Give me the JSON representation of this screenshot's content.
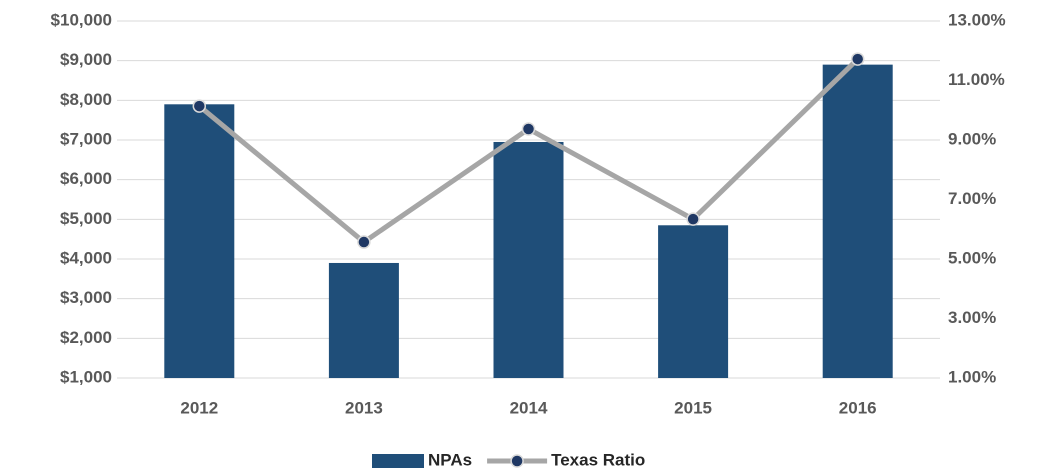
{
  "chart_data": {
    "type": "bar",
    "categories": [
      "2012",
      "2013",
      "2014",
      "2015",
      "2016"
    ],
    "series": [
      {
        "name": "NPAs",
        "type": "bar",
        "color": "#1f4e79",
        "values": [
          7900,
          3900,
          6950,
          4850,
          8900
        ]
      },
      {
        "name": "Texas Ratio",
        "type": "line",
        "axis": "y2",
        "color": "#a6a6a6",
        "marker_color": "#1f3864",
        "values": [
          10.14,
          5.57,
          9.37,
          6.34,
          11.72
        ]
      }
    ],
    "ylim": [
      1000,
      10000
    ],
    "yticks": [
      {
        "value": 1000,
        "label": "$1,000"
      },
      {
        "value": 2000,
        "label": "$2,000"
      },
      {
        "value": 3000,
        "label": "$3,000"
      },
      {
        "value": 4000,
        "label": "$4,000"
      },
      {
        "value": 5000,
        "label": "$5,000"
      },
      {
        "value": 6000,
        "label": "$6,000"
      },
      {
        "value": 7000,
        "label": "$7,000"
      },
      {
        "value": 8000,
        "label": "$8,000"
      },
      {
        "value": 9000,
        "label": "$9,000"
      },
      {
        "value": 10000,
        "label": "$10,000"
      }
    ],
    "y2lim": [
      1,
      13
    ],
    "y2ticks": [
      {
        "value": 1,
        "label": "1.00%"
      },
      {
        "value": 3,
        "label": "3.00%"
      },
      {
        "value": 5,
        "label": "5.00%"
      },
      {
        "value": 7,
        "label": "7.00%"
      },
      {
        "value": 9,
        "label": "9.00%"
      },
      {
        "value": 11,
        "label": "11.00%"
      },
      {
        "value": 13,
        "label": "13.00%"
      }
    ],
    "grid": true,
    "legend": "bottom"
  }
}
